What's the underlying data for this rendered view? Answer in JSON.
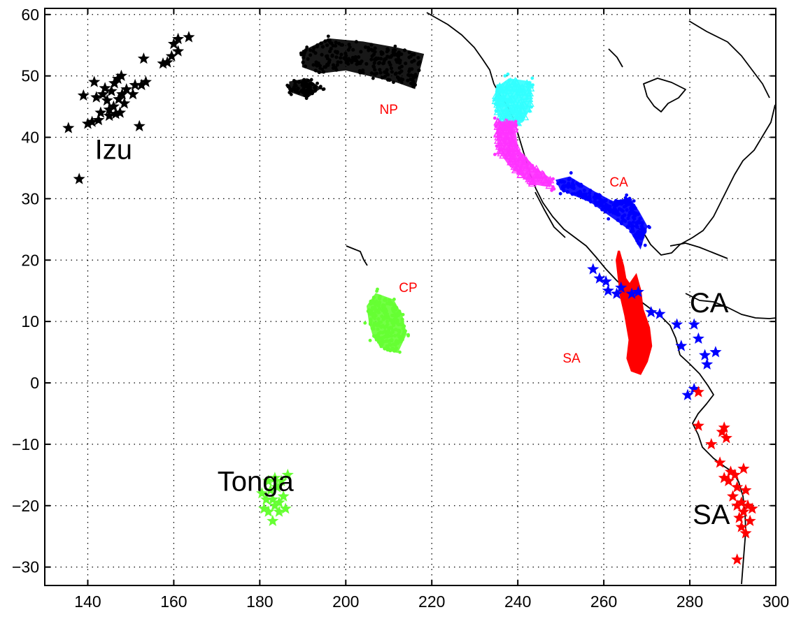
{
  "chart_data": {
    "type": "scatter",
    "title": "",
    "xlabel": "",
    "ylabel": "",
    "xlim": [
      130,
      300
    ],
    "ylim": [
      -33,
      61
    ],
    "xticks": [
      140,
      160,
      180,
      200,
      220,
      240,
      260,
      280,
      300
    ],
    "yticks": [
      60,
      50,
      40,
      30,
      20,
      10,
      0,
      -10,
      -20,
      -30
    ],
    "grid": true,
    "colors": {
      "black": "#000000",
      "red": "#ff0000",
      "blue": "#0000ff",
      "green": "#66ff33",
      "cyan": "#33ffff",
      "magenta": "#ff33ff"
    },
    "region_labels": [
      {
        "text": "Izu",
        "x": 146,
        "y": 36.5,
        "size": "large",
        "color": "#000000"
      },
      {
        "text": "Tonga",
        "x": 179,
        "y": -17.6,
        "size": "large",
        "color": "#000000"
      },
      {
        "text": "CA",
        "x": 284.5,
        "y": 11.5,
        "size": "large",
        "color": "#000000"
      },
      {
        "text": "SA",
        "x": 285,
        "y": -23,
        "size": "large",
        "color": "#000000"
      },
      {
        "text": "NP",
        "x": 210,
        "y": 43.8,
        "size": "small",
        "color": "#ff0000"
      },
      {
        "text": "CA",
        "x": 263.5,
        "y": 32,
        "size": "small",
        "color": "#ff0000"
      },
      {
        "text": "CP",
        "x": 214.5,
        "y": 14.8,
        "size": "small",
        "color": "#ff0000"
      },
      {
        "text": "SA",
        "x": 252.5,
        "y": 3.3,
        "size": "small",
        "color": "#ff0000"
      }
    ],
    "star_series": [
      {
        "region": "Izu",
        "color": "#000000",
        "points": [
          [
            135.5,
            41.5
          ],
          [
            138,
            33.2
          ],
          [
            139,
            46.8
          ],
          [
            140,
            42.2
          ],
          [
            141,
            42.5
          ],
          [
            141.5,
            49
          ],
          [
            142,
            46.5
          ],
          [
            142.5,
            42.8
          ],
          [
            143,
            44
          ],
          [
            143.5,
            47
          ],
          [
            144,
            48
          ],
          [
            144.5,
            46
          ],
          [
            145,
            43.5
          ],
          [
            145,
            44.5
          ],
          [
            145.5,
            47.5
          ],
          [
            146,
            45
          ],
          [
            146.2,
            48.8
          ],
          [
            146.5,
            43.8
          ],
          [
            147,
            49.5
          ],
          [
            147.2,
            46.2
          ],
          [
            147.5,
            44
          ],
          [
            147.8,
            50
          ],
          [
            148,
            47
          ],
          [
            148.5,
            45.5
          ],
          [
            149,
            47.8
          ],
          [
            150.5,
            47
          ],
          [
            151,
            48.5
          ],
          [
            152,
            41.8
          ],
          [
            152.5,
            48.5
          ],
          [
            153,
            52.8
          ],
          [
            153.5,
            49
          ],
          [
            157.5,
            52
          ],
          [
            158.5,
            52.2
          ],
          [
            159.5,
            53.2
          ],
          [
            160,
            55.2
          ],
          [
            161,
            56
          ],
          [
            161,
            54
          ],
          [
            163.5,
            56.3
          ]
        ]
      },
      {
        "region": "Tonga",
        "color": "#66ff33",
        "points": [
          [
            180.5,
            -18
          ],
          [
            181,
            -20.5
          ],
          [
            181.5,
            -19
          ],
          [
            182,
            -16
          ],
          [
            182,
            -21
          ],
          [
            182.5,
            -17.5
          ],
          [
            183,
            -19
          ],
          [
            183,
            -22.5
          ],
          [
            183.5,
            -20
          ],
          [
            183.5,
            -15.5
          ],
          [
            184,
            -17
          ],
          [
            184.5,
            -19.5
          ],
          [
            184.5,
            -21
          ],
          [
            185,
            -16
          ],
          [
            185.5,
            -18.5
          ],
          [
            186,
            -20.5
          ],
          [
            186.5,
            -15
          ]
        ]
      },
      {
        "region": "CA",
        "color": "#0000ff",
        "points": [
          [
            257.5,
            18.5
          ],
          [
            259,
            17
          ],
          [
            260.5,
            16.5
          ],
          [
            261,
            15
          ],
          [
            263,
            14.5
          ],
          [
            264,
            15.5
          ],
          [
            266.5,
            14.5
          ],
          [
            268,
            14.8
          ],
          [
            271,
            11.5
          ],
          [
            273,
            11.2
          ],
          [
            277,
            9.5
          ],
          [
            278,
            6
          ],
          [
            281,
            9.5
          ],
          [
            282,
            7.2
          ],
          [
            283.5,
            4.5
          ],
          [
            284,
            3
          ],
          [
            286,
            5
          ],
          [
            279.5,
            -2
          ],
          [
            281,
            -1
          ]
        ]
      },
      {
        "region": "SA",
        "color": "#ff0000",
        "points": [
          [
            282,
            -1.5
          ],
          [
            282,
            -7
          ],
          [
            285,
            -10
          ],
          [
            287,
            -13
          ],
          [
            287.5,
            -8
          ],
          [
            288,
            -7.3
          ],
          [
            288.5,
            -9
          ],
          [
            288,
            -15.5
          ],
          [
            289,
            -16
          ],
          [
            289.5,
            -14.5
          ],
          [
            290,
            -18.5
          ],
          [
            290.5,
            -15
          ],
          [
            291,
            -17
          ],
          [
            291,
            -20
          ],
          [
            291,
            -28.8
          ],
          [
            291.5,
            -22
          ],
          [
            292,
            -19.5
          ],
          [
            292,
            -23.5
          ],
          [
            292.5,
            -21
          ],
          [
            293,
            -24.5
          ],
          [
            293,
            -17.5
          ],
          [
            293.5,
            -20
          ],
          [
            294,
            -22.5
          ],
          [
            294.5,
            -20.5
          ],
          [
            292.5,
            -14
          ]
        ]
      }
    ],
    "dot_clouds": [
      {
        "region": "NP",
        "color": "#000000",
        "shape": "dots",
        "outline": [
          [
            190,
            54
          ],
          [
            196,
            56
          ],
          [
            204,
            55.5
          ],
          [
            212,
            54.5
          ],
          [
            218,
            53.5
          ],
          [
            216,
            48
          ],
          [
            212,
            49
          ],
          [
            206,
            50
          ],
          [
            200,
            51
          ],
          [
            194,
            50.5
          ],
          [
            190,
            51.5
          ]
        ],
        "extra_outline": [
          [
            187,
            49
          ],
          [
            191,
            49.5
          ],
          [
            194,
            48
          ],
          [
            191,
            46.5
          ],
          [
            187,
            47.5
          ]
        ]
      },
      {
        "region": "CA",
        "color": "#0000ff",
        "shape": "dots",
        "outline": [
          [
            249,
            33
          ],
          [
            252,
            33.5
          ],
          [
            258,
            31
          ],
          [
            262,
            29.5
          ],
          [
            266,
            30
          ],
          [
            268,
            28
          ],
          [
            270,
            25.5
          ],
          [
            268.5,
            22
          ],
          [
            266,
            25
          ],
          [
            262,
            27
          ],
          [
            257,
            29.5
          ],
          [
            250,
            31.5
          ]
        ]
      },
      {
        "region": "CP",
        "color": "#66ff33",
        "shape": "dots",
        "outline": [
          [
            205,
            12.5
          ],
          [
            207,
            14.5
          ],
          [
            211,
            13.5
          ],
          [
            213,
            11
          ],
          [
            214,
            8
          ],
          [
            212,
            5
          ],
          [
            209,
            5.5
          ],
          [
            206.5,
            7.5
          ],
          [
            205.5,
            10
          ]
        ]
      }
    ],
    "triangle_clouds": [
      {
        "region": "NP-north",
        "color": "#33ffff",
        "shape": "triangle",
        "outline": [
          [
            235,
            48
          ],
          [
            238,
            49.5
          ],
          [
            243,
            49
          ],
          [
            243,
            45
          ],
          [
            241,
            42.5
          ],
          [
            238,
            42
          ],
          [
            235.5,
            43.5
          ],
          [
            234.8,
            46
          ]
        ]
      },
      {
        "region": "NP-south",
        "color": "#ff33ff",
        "shape": "triangle",
        "outline": [
          [
            235,
            42.5
          ],
          [
            239,
            42.5
          ],
          [
            240,
            38
          ],
          [
            244,
            35
          ],
          [
            248,
            33
          ],
          [
            247.5,
            32
          ],
          [
            243,
            32.5
          ],
          [
            238,
            35.5
          ],
          [
            235.5,
            38
          ]
        ]
      }
    ],
    "filled_regions": [
      {
        "region": "SA",
        "color": "#ff0000",
        "outline": [
          [
            263.5,
            21.5
          ],
          [
            264.5,
            19
          ],
          [
            265,
            17
          ],
          [
            266,
            16
          ],
          [
            267.5,
            17.5
          ],
          [
            268.5,
            15
          ],
          [
            269,
            12
          ],
          [
            270.5,
            9
          ],
          [
            271,
            6
          ],
          [
            270,
            3.5
          ],
          [
            268.5,
            1.5
          ],
          [
            266.5,
            2
          ],
          [
            265.5,
            4
          ],
          [
            266,
            7
          ],
          [
            265,
            11
          ],
          [
            264,
            14
          ],
          [
            263.5,
            17
          ],
          [
            263,
            20
          ]
        ]
      }
    ]
  }
}
